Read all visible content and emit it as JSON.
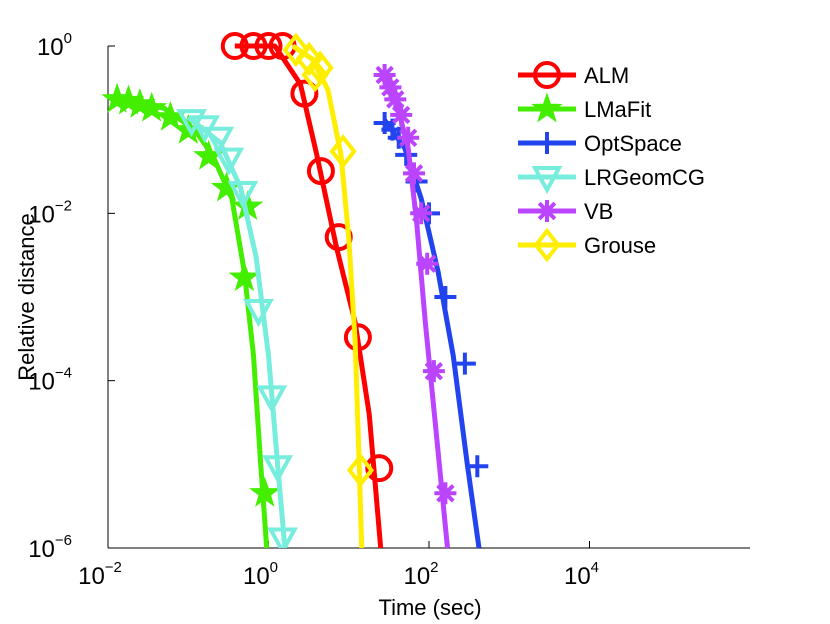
{
  "chart_data": {
    "type": "line",
    "xlabel": "Time (sec)",
    "ylabel": "Relative distance",
    "xscale": "log",
    "yscale": "log",
    "xlim": [
      0.01,
      1000000
    ],
    "ylim": [
      1e-06,
      1
    ],
    "x_ticks": [
      {
        "value": 0.01,
        "base": "10",
        "exp": "−2"
      },
      {
        "value": 1,
        "base": "10",
        "exp": "0"
      },
      {
        "value": 100,
        "base": "10",
        "exp": "2"
      },
      {
        "value": 10000,
        "base": "10",
        "exp": "4"
      }
    ],
    "y_ticks": [
      {
        "value": 1,
        "base": "10",
        "exp": "0"
      },
      {
        "value": 0.01,
        "base": "10",
        "exp": "−2"
      },
      {
        "value": 0.0001,
        "base": "10",
        "exp": "−4"
      },
      {
        "value": 1e-06,
        "base": "10",
        "exp": "−6"
      }
    ],
    "grid": false,
    "legend_position": "top-right",
    "series": [
      {
        "name": "ALM",
        "color": "#ff0000",
        "marker": "circle",
        "line": [
          [
            0.38,
            1
          ],
          [
            1.2,
            1
          ],
          [
            2.5,
            0.35
          ],
          [
            4,
            0.05
          ],
          [
            7,
            0.004
          ],
          [
            12,
            0.0005
          ],
          [
            18,
            4e-05
          ],
          [
            25,
            1e-06
          ]
        ],
        "markers": [
          [
            0.38,
            1
          ],
          [
            0.65,
            1
          ],
          [
            1.0,
            1
          ],
          [
            1.5,
            1
          ],
          [
            2.8,
            0.27
          ],
          [
            4.5,
            0.032
          ],
          [
            7.5,
            0.0052
          ],
          [
            13,
            0.00033
          ],
          [
            24,
            9e-06
          ]
        ]
      },
      {
        "name": "LMaFit",
        "color": "#44ee00",
        "marker": "star",
        "line": [
          [
            0.01,
            0.25
          ],
          [
            0.05,
            0.18
          ],
          [
            0.12,
            0.1
          ],
          [
            0.2,
            0.05
          ],
          [
            0.35,
            0.015
          ],
          [
            0.5,
            0.002
          ],
          [
            0.65,
            0.0002
          ],
          [
            0.8,
            1e-05
          ],
          [
            0.95,
            1e-06
          ]
        ],
        "markers": [
          [
            0.013,
            0.23
          ],
          [
            0.018,
            0.22
          ],
          [
            0.025,
            0.2
          ],
          [
            0.035,
            0.18
          ],
          [
            0.06,
            0.14
          ],
          [
            0.1,
            0.098
          ],
          [
            0.18,
            0.048
          ],
          [
            0.3,
            0.02
          ],
          [
            0.55,
            0.012
          ],
          [
            0.5,
            0.0017
          ],
          [
            0.9,
            4.5e-06
          ]
        ]
      },
      {
        "name": "OptSpace",
        "color": "#2244ee",
        "marker": "plus",
        "line": [
          [
            28,
            0.13
          ],
          [
            50,
            0.06
          ],
          [
            80,
            0.015
          ],
          [
            130,
            0.002
          ],
          [
            200,
            0.0002
          ],
          [
            300,
            1e-05
          ],
          [
            420,
            1e-06
          ]
        ],
        "markers": [
          [
            28,
            0.12
          ],
          [
            35,
            0.1
          ],
          [
            42,
            0.08
          ],
          [
            52,
            0.05
          ],
          [
            70,
            0.024
          ],
          [
            100,
            0.01
          ],
          [
            160,
            0.001
          ],
          [
            280,
            0.00016
          ],
          [
            400,
            9.5e-06
          ]
        ]
      },
      {
        "name": "LRGeomCG",
        "color": "#77eedd",
        "marker": "triangle-down",
        "line": [
          [
            0.1,
            0.14
          ],
          [
            0.25,
            0.07
          ],
          [
            0.45,
            0.02
          ],
          [
            0.7,
            0.003
          ],
          [
            1.0,
            0.0002
          ],
          [
            1.3,
            1e-05
          ],
          [
            1.6,
            1e-06
          ]
        ],
        "markers": [
          [
            0.11,
            0.13
          ],
          [
            0.16,
            0.11
          ],
          [
            0.24,
            0.08
          ],
          [
            0.32,
            0.045
          ],
          [
            0.48,
            0.018
          ],
          [
            0.75,
            0.0007
          ],
          [
            1.3,
            9.5e-06
          ],
          [
            1.1,
            6.5e-05
          ],
          [
            1.5,
            1.3e-06
          ]
        ]
      },
      {
        "name": "VB",
        "color": "#bb44ff",
        "marker": "asterisk",
        "line": [
          [
            30,
            0.45
          ],
          [
            40,
            0.2
          ],
          [
            55,
            0.06
          ],
          [
            70,
            0.008
          ],
          [
            90,
            0.0005
          ],
          [
            120,
            3e-05
          ],
          [
            170,
            1e-06
          ]
        ],
        "markers": [
          [
            28,
            0.45
          ],
          [
            33,
            0.32
          ],
          [
            38,
            0.23
          ],
          [
            45,
            0.15
          ],
          [
            55,
            0.08
          ],
          [
            65,
            0.03
          ],
          [
            80,
            0.01
          ],
          [
            95,
            0.0025
          ],
          [
            115,
            0.00013
          ],
          [
            160,
            4.5e-06
          ]
        ]
      },
      {
        "name": "Grouse",
        "color": "#ffee00",
        "marker": "diamond",
        "line": [
          [
            2.0,
            1
          ],
          [
            3.5,
            0.7
          ],
          [
            5.5,
            0.3
          ],
          [
            8,
            0.05
          ],
          [
            10,
            0.005
          ],
          [
            12,
            0.0003
          ],
          [
            13.5,
            1e-05
          ],
          [
            14.5,
            1e-06
          ]
        ],
        "markers": [
          [
            2.2,
            0.9
          ],
          [
            3.2,
            0.7
          ],
          [
            4.4,
            0.55
          ],
          [
            8.5,
            0.055
          ],
          [
            14,
            8.5e-06
          ],
          [
            3.8,
            0.45
          ]
        ]
      }
    ]
  }
}
